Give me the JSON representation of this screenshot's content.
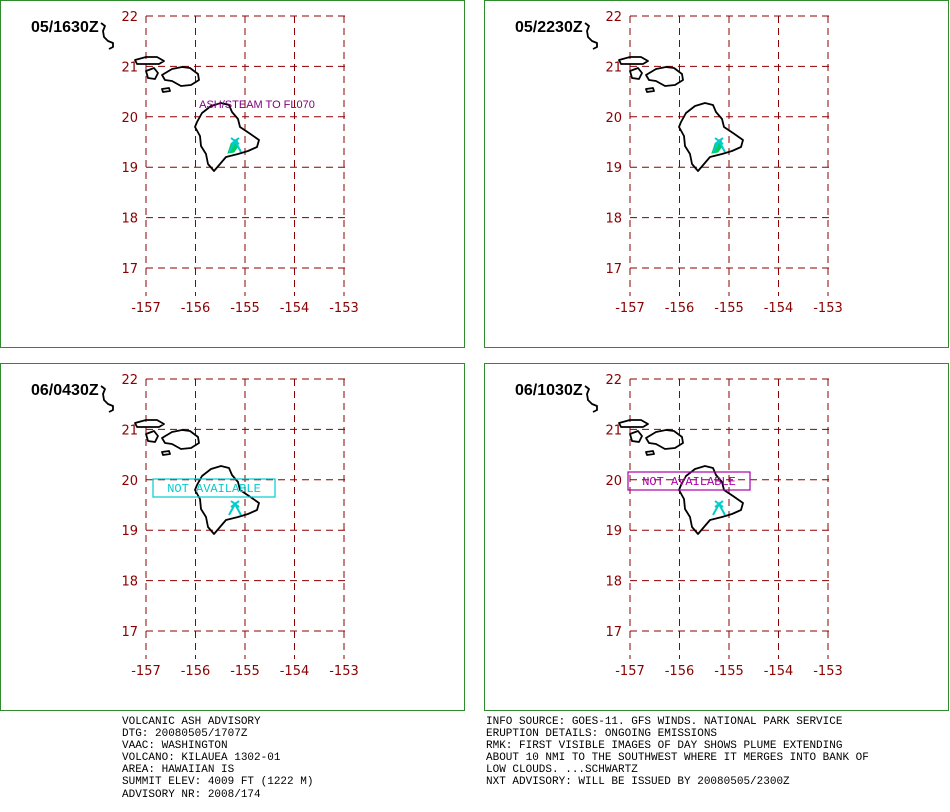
{
  "map_axes": {
    "lon_ticks": [
      "-157",
      "-156",
      "-155",
      "-154",
      "-153"
    ],
    "lat_ticks": [
      "22",
      "21",
      "20",
      "19",
      "18",
      "17"
    ]
  },
  "panels": [
    {
      "time": "05/1630Z",
      "annotation": "ASH/STEAM TO FL070",
      "annotation_color": "#800080",
      "boxed": false,
      "plume": true
    },
    {
      "time": "05/2230Z",
      "annotation": "",
      "annotation_color": "",
      "boxed": false,
      "plume": true
    },
    {
      "time": "06/0430Z",
      "annotation": "NOT AVAILABLE",
      "annotation_color": "#00cccc",
      "boxed": true,
      "plume": false
    },
    {
      "time": "06/1030Z",
      "annotation": "NOT AVAILABLE",
      "annotation_color": "#aa00aa",
      "boxed": true,
      "plume": false
    }
  ],
  "advisory_left": [
    "VOLCANIC ASH ADVISORY",
    "DTG: 20080505/1707Z",
    "VAAC: WASHINGTON",
    "VOLCANO: KILAUEA 1302-01",
    "AREA: HAWAIIAN IS",
    "SUMMIT ELEV: 4009 FT (1222 M)",
    "ADVISORY NR: 2008/174"
  ],
  "advisory_right": [
    "INFO SOURCE: GOES-11. GFS WINDS. NATIONAL PARK SERVICE",
    "ERUPTION DETAILS: ONGOING EMISSIONS",
    "RMK: FIRST VISIBLE IMAGES OF DAY SHOWS PLUME EXTENDING",
    "ABOUT 10 NMI TO THE SOUTHWEST WHERE IT MERGES INTO BANK OF",
    "LOW CLOUDS. ...SCHWARTZ",
    "NXT ADVISORY: WILL BE ISSUED BY 20080505/2300Z"
  ],
  "colors": {
    "grid": "#8b0000",
    "tick_text": "#8b0000",
    "coast": "#000000",
    "volcano": "#00cccc",
    "plume": "#00cc66",
    "border": "#2e8b2e"
  }
}
